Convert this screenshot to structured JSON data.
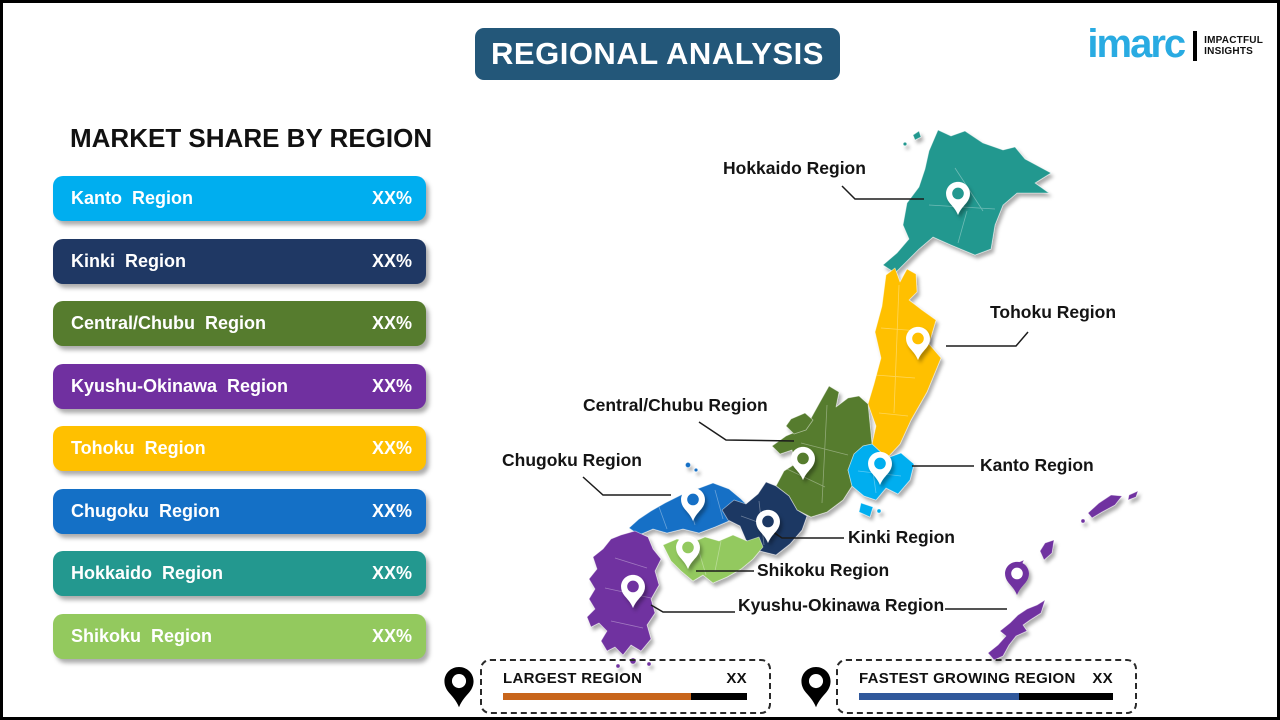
{
  "page": {
    "title": "REGIONAL ANALYSIS",
    "title_bg": "#235779"
  },
  "logo": {
    "brand": "imarc",
    "brand_color": "#29ABE2",
    "tagline_line1": "IMPACTFUL",
    "tagline_line2": "INSIGHTS"
  },
  "market_share": {
    "heading": "MARKET SHARE BY REGION",
    "rows": [
      {
        "label": "Kanto Region",
        "value": "XX%",
        "color": "#00AEEF"
      },
      {
        "label": "Kinki Region",
        "value": "XX%",
        "color": "#1F3864"
      },
      {
        "label": "Central/Chubu Region",
        "value": "XX%",
        "color": "#567C2E"
      },
      {
        "label": "Kyushu-Okinawa Region",
        "value": "XX%",
        "color": "#7030A0"
      },
      {
        "label": "Tohoku Region",
        "value": "XX%",
        "color": "#FFC000"
      },
      {
        "label": "Chugoku Region",
        "value": "XX%",
        "color": "#1470C6"
      },
      {
        "label": "Hokkaido Region",
        "value": "XX%",
        "color": "#23988F"
      },
      {
        "label": "Shikoku Region",
        "value": "XX%",
        "color": "#93C95E"
      }
    ]
  },
  "map": {
    "regions": [
      {
        "name": "Hokkaido",
        "label": "Hokkaido Region",
        "color": "#23988F"
      },
      {
        "name": "Tohoku",
        "label": "Tohoku Region",
        "color": "#FFC000"
      },
      {
        "name": "Central/Chubu",
        "label": "Central/Chubu Region",
        "color": "#567C2E"
      },
      {
        "name": "Kanto",
        "label": "Kanto Region",
        "color": "#00AEEF"
      },
      {
        "name": "Chugoku",
        "label": "Chugoku Region",
        "color": "#1470C6"
      },
      {
        "name": "Kinki",
        "label": "Kinki Region",
        "color": "#1F3864"
      },
      {
        "name": "Shikoku",
        "label": "Shikoku Region",
        "color": "#93C95E"
      },
      {
        "name": "Kyushu-Okinawa",
        "label": "Kyushu-Okinawa Region",
        "color": "#7030A0"
      }
    ]
  },
  "footer": {
    "largest": {
      "label": "LARGEST REGION",
      "value": "XX",
      "bar_color": "#C8651B",
      "bar_fill_pct": 77
    },
    "fastest": {
      "label": "FASTEST GROWING REGION",
      "value": "XX",
      "bar_color": "#30589B",
      "bar_fill_pct": 63
    }
  }
}
